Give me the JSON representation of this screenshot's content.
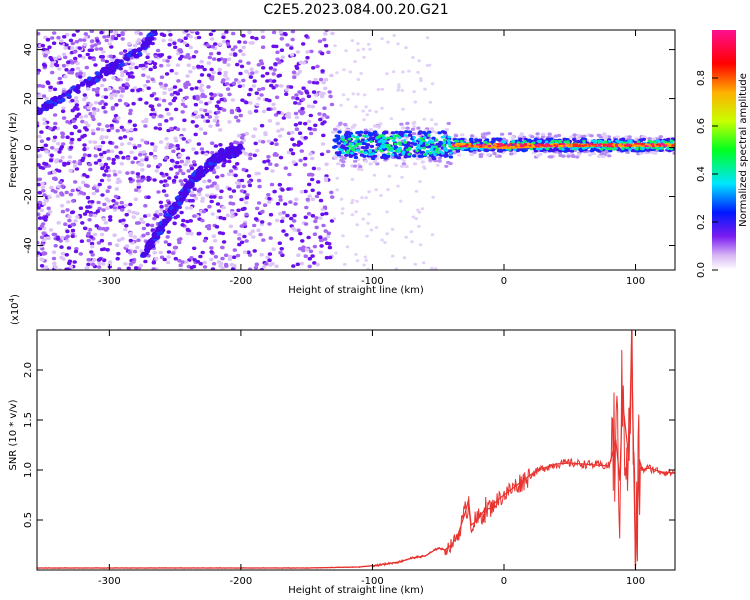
{
  "title": "C2E5.2023.084.00.20.G21",
  "chart_data": [
    {
      "type": "heatmap",
      "xlabel": "Height of straight line (km)",
      "ylabel": "Frequency (Hz)",
      "xlim": [
        -355,
        130
      ],
      "ylim": [
        -50,
        48
      ],
      "xticks": [
        "-300",
        "-200",
        "-100",
        "0",
        "100"
      ],
      "yticks": [
        "-40",
        "-20",
        "0",
        "20",
        "40"
      ],
      "colorbar": {
        "label": "Normalized spectral amplitude",
        "range": [
          0.0,
          1.0
        ],
        "ticks": [
          "0.0",
          "0.2",
          "0.4",
          "0.6",
          "0.8"
        ],
        "colors": [
          "#ffffff",
          "#d9b8f5",
          "#7a1cf0",
          "#0018ff",
          "#00e6ff",
          "#00ff20",
          "#c8ff00",
          "#ffb000",
          "#ff0000",
          "#ff1090"
        ]
      },
      "features": [
        {
          "region": "noise",
          "x": [
            -355,
            -130
          ],
          "y": [
            -50,
            48
          ]
        },
        {
          "region": "descending-trace",
          "points": [
            [
              -275,
              -45
            ],
            [
              -255,
              -28
            ],
            [
              -235,
              -12
            ],
            [
              -215,
              -3
            ],
            [
              -200,
              -1
            ]
          ]
        },
        {
          "region": "ascending-trace",
          "points": [
            [
              -355,
              15
            ],
            [
              -330,
              22
            ],
            [
              -300,
              32
            ],
            [
              -275,
              40
            ],
            [
              -265,
              48
            ]
          ]
        },
        {
          "region": "carrier-band",
          "x": [
            -130,
            130
          ],
          "y": [
            -4,
            5
          ]
        },
        {
          "region": "strong-signal",
          "points": [
            [
              -40,
              1
            ],
            [
              0,
              0
            ],
            [
              50,
              1
            ],
            [
              100,
              1
            ],
            [
              130,
              1
            ]
          ]
        }
      ]
    },
    {
      "type": "line",
      "xlabel": "Height of straight line (km)",
      "ylabel": "SNR (10 * v/v)",
      "scale_label": "(x10",
      "scale_exp": "4",
      "scale_close": ")",
      "xlim": [
        -355,
        130
      ],
      "ylim": [
        0,
        2.4
      ],
      "xticks": [
        "-300",
        "-200",
        "-100",
        "0",
        "100"
      ],
      "yticks": [
        "0.5",
        "1.0",
        "1.5",
        "2.0"
      ],
      "series": [
        {
          "color": "#e8332f",
          "x": [
            -355,
            -300,
            -250,
            -200,
            -150,
            -110,
            -95,
            -80,
            -70,
            -60,
            -55,
            -50,
            -45,
            -40,
            -35,
            -30,
            -27,
            -25,
            -20,
            -15,
            -10,
            -5,
            0,
            10,
            20,
            30,
            40,
            50,
            60,
            70,
            80,
            85,
            88,
            90,
            95,
            97,
            100,
            103,
            105,
            110,
            120,
            130
          ],
          "y": [
            0.02,
            0.02,
            0.02,
            0.02,
            0.02,
            0.03,
            0.05,
            0.08,
            0.12,
            0.14,
            0.18,
            0.22,
            0.2,
            0.25,
            0.35,
            0.55,
            0.7,
            0.45,
            0.5,
            0.6,
            0.62,
            0.7,
            0.75,
            0.85,
            0.95,
            1.02,
            1.06,
            1.07,
            1.06,
            1.05,
            1.04,
            1.3,
            0.9,
            1.7,
            1.1,
            2.3,
            0.05,
            1.1,
            1.0,
            1.02,
            0.98,
            0.97
          ]
        }
      ]
    }
  ]
}
